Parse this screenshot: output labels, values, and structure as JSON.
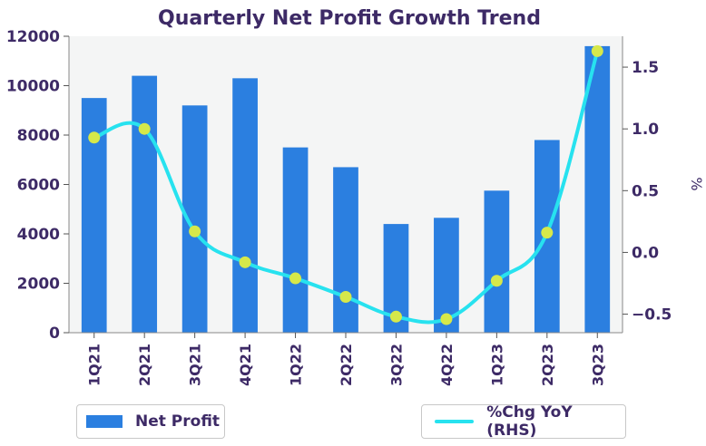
{
  "chart_data": {
    "type": "bar+line",
    "title": "Quarterly Net Profit Growth Trend",
    "categories": [
      "1Q21",
      "2Q21",
      "3Q21",
      "4Q21",
      "1Q22",
      "2Q22",
      "3Q22",
      "4Q22",
      "1Q23",
      "2Q23",
      "3Q23"
    ],
    "series": [
      {
        "name": "Net Profit",
        "type": "bar",
        "axis": "left",
        "values": [
          9500,
          10400,
          9200,
          10300,
          7500,
          6700,
          4400,
          4650,
          5750,
          7800,
          11600
        ]
      },
      {
        "name": "%Chg YoY (RHS)",
        "type": "line",
        "axis": "right",
        "values": [
          0.93,
          1.0,
          0.17,
          -0.08,
          -0.21,
          -0.36,
          -0.52,
          -0.54,
          -0.23,
          0.16,
          1.63
        ]
      }
    ],
    "y_left": {
      "label": "",
      "ylim": [
        0,
        12000
      ],
      "ticks": [
        0,
        2000,
        4000,
        6000,
        8000,
        10000,
        12000
      ]
    },
    "y_right": {
      "label": "%",
      "ylim": [
        -0.65,
        1.75
      ],
      "ticks": [
        -0.5,
        0.0,
        0.5,
        1.0,
        1.5
      ]
    },
    "grid": false,
    "legend_placement": "bottom",
    "colors": {
      "bar": "#2b7fe0",
      "line": "#27e2ef",
      "marker": "#d6e84a",
      "plot_bg": "#f4f5f5",
      "text": "#3d2a66"
    }
  }
}
